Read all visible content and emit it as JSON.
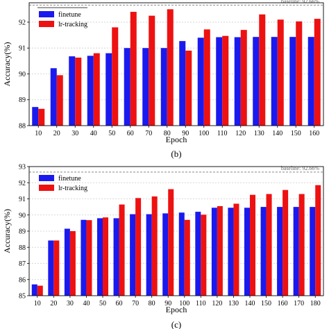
{
  "colors": {
    "finetune": "#1a1aee",
    "lr_tracking": "#ee1111",
    "baseline": "#777777",
    "grid": "#cccccc"
  },
  "chart_data": [
    {
      "type": "bar",
      "caption": "(b)",
      "xlabel": "Epoch",
      "ylabel": "Accuracy(%)",
      "ylim": [
        88,
        92.75
      ],
      "yticks": [
        "88",
        "89",
        "90",
        "91",
        "92"
      ],
      "grid": "horizontal dashed",
      "legend_position": "top-left",
      "baseline": {
        "label": "baseline: 92.66%",
        "value": 92.66
      },
      "categories": [
        "10",
        "20",
        "30",
        "40",
        "50",
        "60",
        "70",
        "80",
        "90",
        "100",
        "110",
        "120",
        "130",
        "140",
        "150",
        "160"
      ],
      "series": [
        {
          "name": "finetune",
          "values": [
            88.72,
            90.22,
            90.68,
            90.7,
            90.8,
            91.0,
            91.0,
            91.0,
            91.27,
            91.4,
            91.42,
            91.42,
            91.43,
            91.43,
            91.43,
            91.43
          ]
        },
        {
          "name": "lr-tracking",
          "values": [
            88.65,
            89.95,
            90.63,
            90.8,
            91.8,
            92.4,
            92.25,
            92.5,
            90.9,
            91.72,
            91.47,
            91.7,
            92.3,
            92.1,
            92.03,
            92.13
          ]
        }
      ]
    },
    {
      "type": "bar",
      "caption": "(c)",
      "xlabel": "Epoch",
      "ylabel": "Accuracy(%)",
      "ylim": [
        85,
        93
      ],
      "yticks": [
        "85",
        "86",
        "87",
        "88",
        "89",
        "90",
        "91",
        "92",
        "93"
      ],
      "grid": "horizontal dashed",
      "legend_position": "top-left",
      "baseline": {
        "label": "baseline: 92.66%",
        "value": 92.66
      },
      "categories": [
        "10",
        "20",
        "30",
        "40",
        "50",
        "60",
        "70",
        "80",
        "90",
        "100",
        "110",
        "120",
        "130",
        "140",
        "150",
        "160",
        "170",
        "180"
      ],
      "series": [
        {
          "name": "finetune",
          "values": [
            85.7,
            88.42,
            89.15,
            89.7,
            89.8,
            89.8,
            90.05,
            90.05,
            90.1,
            90.15,
            90.2,
            90.45,
            90.45,
            90.45,
            90.5,
            90.5,
            90.5,
            90.5
          ]
        },
        {
          "name": "lr-tracking",
          "values": [
            85.62,
            88.42,
            89.0,
            89.68,
            89.85,
            90.65,
            91.05,
            91.15,
            91.6,
            89.7,
            90.02,
            90.55,
            90.7,
            91.25,
            91.3,
            91.55,
            91.3,
            91.85
          ]
        }
      ]
    }
  ]
}
